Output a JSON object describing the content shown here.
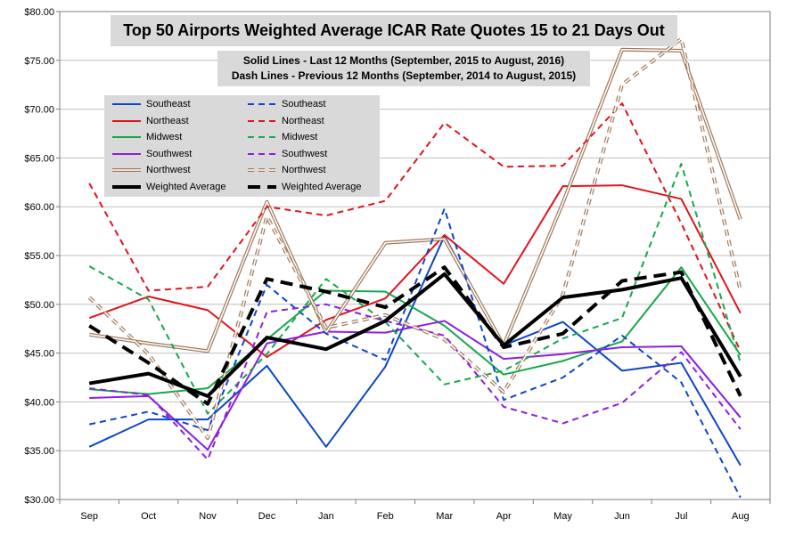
{
  "chart_data": {
    "type": "line",
    "title": "Top 50 Airports Weighted Average ICAR Rate Quotes 15 to 21 Days Out",
    "subtitle_lines": [
      "Solid Lines - Last 12 Months  (September, 2015 to August, 2016)",
      "Dash Lines - Previous 12 Months (September, 2014 to August, 2015)"
    ],
    "categories": [
      "Sep",
      "Oct",
      "Nov",
      "Dec",
      "Jan",
      "Feb",
      "Mar",
      "Apr",
      "May",
      "Jun",
      "Jul",
      "Aug"
    ],
    "y_ticks": [
      "$30.00",
      "$35.00",
      "$40.00",
      "$45.00",
      "$50.00",
      "$55.00",
      "$60.00",
      "$65.00",
      "$70.00",
      "$75.00",
      "$80.00"
    ],
    "ylim": [
      30,
      80
    ],
    "grid": true,
    "legend_position": "top-left",
    "series": [
      {
        "name": "Southeast",
        "style": "solid",
        "color": "#0e46c7",
        "width": 2,
        "values": [
          35.4,
          38.2,
          38.2,
          43.7,
          35.4,
          43.6,
          57.0,
          45.8,
          48.2,
          43.2,
          44.0,
          33.5
        ]
      },
      {
        "name": "Northeast",
        "style": "solid",
        "color": "#e0141e",
        "width": 2,
        "values": [
          48.6,
          50.8,
          49.4,
          44.6,
          48.4,
          50.6,
          57.1,
          52.1,
          62.1,
          62.2,
          60.8,
          49.1
        ]
      },
      {
        "name": "Midwest",
        "style": "solid",
        "color": "#17a84b",
        "width": 2,
        "values": [
          41.3,
          40.8,
          41.4,
          46.4,
          51.4,
          51.3,
          47.8,
          42.8,
          44.2,
          46.2,
          53.8,
          44.8
        ]
      },
      {
        "name": "Southwest",
        "style": "solid",
        "color": "#8c1fe0",
        "width": 2,
        "values": [
          40.4,
          40.6,
          35.1,
          46.0,
          47.2,
          47.1,
          48.3,
          44.4,
          44.9,
          45.6,
          45.7,
          38.4
        ]
      },
      {
        "name": "Northwest",
        "style": "double",
        "color": "#a0785a",
        "width": 1,
        "values": [
          46.9,
          46.0,
          45.2,
          60.5,
          47.1,
          56.3,
          56.7,
          45.8,
          60.4,
          76.1,
          76.0,
          58.7
        ]
      },
      {
        "name": "Weighted Average",
        "style": "solid",
        "color": "#000000",
        "width": 4,
        "values": [
          41.9,
          42.9,
          40.6,
          46.6,
          45.4,
          48.3,
          53.1,
          45.8,
          50.7,
          51.5,
          52.7,
          42.6
        ]
      },
      {
        "name": "Southeast",
        "style": "dashed",
        "color": "#0e46c7",
        "width": 2,
        "values": [
          37.7,
          39.0,
          37.1,
          52.0,
          47.0,
          44.3,
          59.8,
          40.2,
          42.5,
          46.8,
          42.0,
          30.2
        ]
      },
      {
        "name": "Northeast",
        "style": "dashed",
        "color": "#e0141e",
        "width": 2,
        "values": [
          62.4,
          51.4,
          51.8,
          60.0,
          59.1,
          60.6,
          68.6,
          64.1,
          64.2,
          70.6,
          58.3,
          45.2
        ]
      },
      {
        "name": "Midwest",
        "style": "dashed",
        "color": "#17a84b",
        "width": 2,
        "values": [
          53.9,
          50.5,
          38.8,
          44.9,
          52.6,
          48.2,
          41.8,
          43.2,
          46.5,
          48.6,
          64.4,
          44.0
        ]
      },
      {
        "name": "Southwest",
        "style": "dashed",
        "color": "#8c1fe0",
        "width": 2,
        "values": [
          41.4,
          40.7,
          34.1,
          49.2,
          50.0,
          48.3,
          46.8,
          39.5,
          37.8,
          39.9,
          45.1,
          37.2
        ]
      },
      {
        "name": "Northwest",
        "style": "dashed-double",
        "color": "#a0785a",
        "width": 1,
        "values": [
          50.7,
          44.9,
          36.3,
          59.0,
          47.6,
          48.9,
          46.4,
          41.0,
          51.0,
          72.5,
          77.2,
          51.4
        ]
      },
      {
        "name": "Weighted Average",
        "style": "dashed",
        "color": "#000000",
        "width": 4,
        "values": [
          47.8,
          44.0,
          39.8,
          52.6,
          51.3,
          49.7,
          53.8,
          45.6,
          47.0,
          52.4,
          53.3,
          40.6
        ]
      }
    ]
  }
}
